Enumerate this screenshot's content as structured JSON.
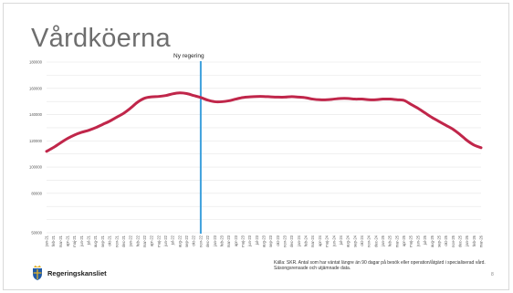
{
  "title": "Vårdköerna",
  "annotation": "Ny regering",
  "source": "Källa: SKR. Antal som har väntat längre än 90 dagar på besök eller operation/åtgärd i specialiserad vård. Säsongsrensade och utjämnade data.",
  "logo": {
    "text": "Regeringskansliet",
    "icon": "crown-shield-icon"
  },
  "page_number": "8",
  "colors": {
    "line": "#c0264a",
    "marker": "#3ea0dc",
    "grid": "#e6e6e6"
  },
  "chart_data": {
    "type": "line",
    "title": "",
    "xlabel": "",
    "ylabel": "",
    "ylim": [
      50000,
      180000
    ],
    "yticks": [
      50000,
      60000,
      70000,
      80000,
      90000,
      100000,
      110000,
      120000,
      130000,
      140000,
      150000,
      160000,
      170000,
      180000
    ],
    "ytick_labels": [
      "50000",
      "",
      "",
      "80000",
      "",
      "100000",
      "",
      "120000",
      "",
      "140000",
      "",
      "160000",
      "",
      "180000"
    ],
    "grid": true,
    "legend": "none",
    "marker_category": "nov-22",
    "categories": [
      "jan-21",
      "feb-21",
      "mar-21",
      "apr-21",
      "maj-21",
      "jun-21",
      "jul-21",
      "aug-21",
      "sep-21",
      "okt-21",
      "nov-21",
      "dec-21",
      "jan-22",
      "feb-22",
      "mar-22",
      "apr-22",
      "maj-22",
      "jun-22",
      "jul-22",
      "aug-22",
      "sep-22",
      "okt-22",
      "nov-22",
      "dec-22",
      "jan-23",
      "feb-23",
      "mar-23",
      "apr-23",
      "maj-23",
      "jun-23",
      "jul-23",
      "aug-23",
      "sep-23",
      "okt-23",
      "nov-23",
      "dec-23",
      "jan-24",
      "feb-24",
      "mar-24",
      "apr-24",
      "maj-24",
      "jun-24",
      "jul-24",
      "aug-24",
      "sep-24",
      "okt-24",
      "nov-24",
      "dec-24",
      "jan-25",
      "feb-25",
      "mar-25",
      "apr-25",
      "maj-25",
      "jun-25",
      "jul-25",
      "aug-25",
      "sep-25",
      "okt-25",
      "nov-25",
      "dec-25",
      "jan-26",
      "feb-26",
      "mar-26"
    ],
    "series": [
      {
        "values": [
          112000,
          115000,
          118500,
          121800,
          124500,
          126500,
          128000,
          130000,
          132500,
          135000,
          138000,
          141000,
          145000,
          149500,
          152500,
          153500,
          153800,
          154500,
          155800,
          156500,
          156000,
          154500,
          153000,
          151000,
          149800,
          149800,
          150500,
          151800,
          153000,
          153500,
          153800,
          153800,
          153500,
          153300,
          153300,
          153700,
          153300,
          152800,
          151800,
          151300,
          151300,
          151800,
          152300,
          152300,
          151800,
          151800,
          151300,
          151300,
          151800,
          151800,
          151300,
          150800,
          147800,
          144800,
          141300,
          137800,
          134800,
          131800,
          128800,
          124800,
          120300,
          116800,
          114800
        ]
      }
    ]
  }
}
